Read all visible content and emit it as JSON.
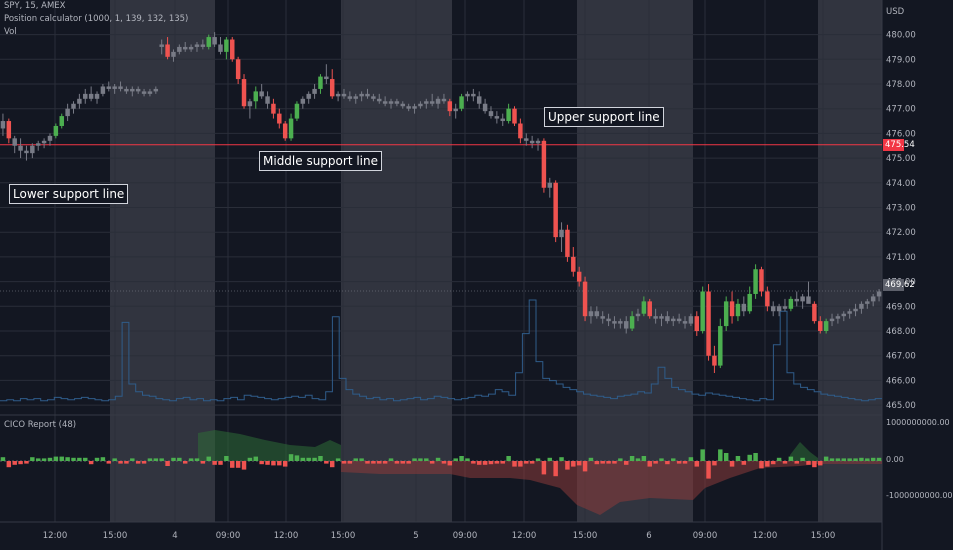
{
  "header": {
    "symbol_line": "SPY, 15, AMEX",
    "indicator_line": "Position calculator (1000, 1, 139, 132, 135)",
    "volume_label": "Vol",
    "currency": "USD"
  },
  "annotations": {
    "lower": "Lower support line",
    "middle": "Middle support line",
    "upper": "Upper support line"
  },
  "lower_pane": {
    "title": "CICO Report (48)",
    "ticks": [
      "1000000000.00",
      "0.00",
      "-1000000000.00"
    ]
  },
  "price_tags": {
    "support": "475.54",
    "last": "469.62"
  },
  "chart_data": {
    "type": "candlestick",
    "y_ticks": [
      "480.00",
      "479.00",
      "478.00",
      "477.00",
      "476.00",
      "475.00",
      "474.00",
      "473.00",
      "472.00",
      "471.00",
      "470.00",
      "469.00",
      "468.00",
      "467.00",
      "466.00",
      "465.00"
    ],
    "x_ticks": [
      "12:00",
      "15:00",
      "4",
      "09:00",
      "12:00",
      "15:00",
      "5",
      "09:00",
      "12:00",
      "15:00",
      "6",
      "09:00",
      "12:00",
      "15:00"
    ],
    "ylim": [
      464.6,
      481.4
    ],
    "support_level": 475.54,
    "last_price": 469.62,
    "colors": {
      "up": "#4caf50",
      "down": "#ef5350",
      "neutral": "#787b86",
      "support": "#f23645",
      "last": "#787b86",
      "session_shade": "#3c3f4a",
      "background": "#131722"
    },
    "candles": [
      [
        476.2,
        476.8,
        475.9,
        476.5
      ],
      [
        476.5,
        476.6,
        475.6,
        475.8
      ],
      [
        475.8,
        475.9,
        475.2,
        475.5
      ],
      [
        475.5,
        475.8,
        475.0,
        475.3
      ],
      [
        475.3,
        475.5,
        474.9,
        475.2
      ],
      [
        475.2,
        475.6,
        475.0,
        475.5
      ],
      [
        475.5,
        475.7,
        475.3,
        475.6
      ],
      [
        475.6,
        475.8,
        475.4,
        475.7
      ],
      [
        475.7,
        476.0,
        475.5,
        475.9
      ],
      [
        475.9,
        476.4,
        475.8,
        476.3
      ],
      [
        476.3,
        476.8,
        476.2,
        476.7
      ],
      [
        476.7,
        477.2,
        476.5,
        477.0
      ],
      [
        477.0,
        477.3,
        476.8,
        477.2
      ],
      [
        477.2,
        477.6,
        477.0,
        477.4
      ],
      [
        477.4,
        477.8,
        477.2,
        477.6
      ],
      [
        477.6,
        477.9,
        477.3,
        477.4
      ],
      [
        477.4,
        477.7,
        477.2,
        477.6
      ],
      [
        477.6,
        478.0,
        477.5,
        477.9
      ],
      [
        477.9,
        478.1,
        477.7,
        477.8
      ],
      [
        477.8,
        478.0,
        477.6,
        477.9
      ],
      [
        477.9,
        478.1,
        477.7,
        477.8
      ],
      [
        477.8,
        477.9,
        477.6,
        477.7
      ],
      [
        477.7,
        477.9,
        477.5,
        477.8
      ],
      [
        477.8,
        477.9,
        477.6,
        477.7
      ],
      [
        477.7,
        477.8,
        477.5,
        477.6
      ],
      [
        477.6,
        477.8,
        477.5,
        477.7
      ],
      [
        477.7,
        477.9,
        477.6,
        477.8
      ],
      [
        479.5,
        479.8,
        479.2,
        479.6
      ],
      [
        479.6,
        479.9,
        479.0,
        479.1
      ],
      [
        479.1,
        479.4,
        478.9,
        479.3
      ],
      [
        479.3,
        479.6,
        479.2,
        479.5
      ],
      [
        479.5,
        479.7,
        479.3,
        479.4
      ],
      [
        479.4,
        479.6,
        479.3,
        479.5
      ],
      [
        479.5,
        479.7,
        479.3,
        479.6
      ],
      [
        479.6,
        479.8,
        479.4,
        479.5
      ],
      [
        479.5,
        480.0,
        479.4,
        479.9
      ],
      [
        479.9,
        480.1,
        479.5,
        479.6
      ],
      [
        479.6,
        479.9,
        479.2,
        479.3
      ],
      [
        479.3,
        479.9,
        479.0,
        479.8
      ],
      [
        479.8,
        479.9,
        478.9,
        479.0
      ],
      [
        479.0,
        479.1,
        478.0,
        478.2
      ],
      [
        478.2,
        478.4,
        477.0,
        477.1
      ],
      [
        477.1,
        477.4,
        476.6,
        477.3
      ],
      [
        477.3,
        477.9,
        477.0,
        477.7
      ],
      [
        477.7,
        478.0,
        477.4,
        477.5
      ],
      [
        477.5,
        477.7,
        477.0,
        477.2
      ],
      [
        477.2,
        477.4,
        476.6,
        476.8
      ],
      [
        476.8,
        477.0,
        476.2,
        476.4
      ],
      [
        476.4,
        476.5,
        475.7,
        475.8
      ],
      [
        475.8,
        476.8,
        475.7,
        476.6
      ],
      [
        476.6,
        477.3,
        476.5,
        477.2
      ],
      [
        477.2,
        477.5,
        477.0,
        477.4
      ],
      [
        477.4,
        477.7,
        477.2,
        477.6
      ],
      [
        477.6,
        478.0,
        477.4,
        477.8
      ],
      [
        477.8,
        478.4,
        477.6,
        478.3
      ],
      [
        478.3,
        478.8,
        478.0,
        478.2
      ],
      [
        478.2,
        478.6,
        477.4,
        477.5
      ],
      [
        477.5,
        477.7,
        477.3,
        477.6
      ],
      [
        477.6,
        477.8,
        477.4,
        477.5
      ],
      [
        477.5,
        477.7,
        477.3,
        477.4
      ],
      [
        477.4,
        477.6,
        477.2,
        477.5
      ],
      [
        477.5,
        477.7,
        477.3,
        477.6
      ],
      [
        477.6,
        477.8,
        477.4,
        477.5
      ],
      [
        477.5,
        477.6,
        477.3,
        477.4
      ],
      [
        477.4,
        477.6,
        477.2,
        477.3
      ],
      [
        477.3,
        477.5,
        477.1,
        477.2
      ],
      [
        477.2,
        477.4,
        477.0,
        477.3
      ],
      [
        477.3,
        477.4,
        477.1,
        477.2
      ],
      [
        477.2,
        477.3,
        477.0,
        477.1
      ],
      [
        477.1,
        477.2,
        476.9,
        477.0
      ],
      [
        477.0,
        477.2,
        476.8,
        477.1
      ],
      [
        477.1,
        477.3,
        477.0,
        477.2
      ],
      [
        477.2,
        477.4,
        477.0,
        477.3
      ],
      [
        477.3,
        477.6,
        477.1,
        477.2
      ],
      [
        477.2,
        477.5,
        477.0,
        477.4
      ],
      [
        477.4,
        477.6,
        477.2,
        477.3
      ],
      [
        477.3,
        477.4,
        476.7,
        476.9
      ],
      [
        476.9,
        477.2,
        476.6,
        477.0
      ],
      [
        477.0,
        477.6,
        476.9,
        477.5
      ],
      [
        477.5,
        477.7,
        477.3,
        477.6
      ],
      [
        477.6,
        477.8,
        477.3,
        477.5
      ],
      [
        477.5,
        477.7,
        477.0,
        477.2
      ],
      [
        477.2,
        477.4,
        476.8,
        476.9
      ],
      [
        476.9,
        477.1,
        476.6,
        476.7
      ],
      [
        476.7,
        476.9,
        476.4,
        476.6
      ],
      [
        476.6,
        476.8,
        476.3,
        476.5
      ],
      [
        476.5,
        477.2,
        476.4,
        477.0
      ],
      [
        477.0,
        477.1,
        476.3,
        476.4
      ],
      [
        476.4,
        476.6,
        475.6,
        475.8
      ],
      [
        475.8,
        476.0,
        475.5,
        475.7
      ],
      [
        475.7,
        475.9,
        475.4,
        475.6
      ],
      [
        475.6,
        475.8,
        475.3,
        475.7
      ],
      [
        475.7,
        475.8,
        473.6,
        473.8
      ],
      [
        473.8,
        474.2,
        473.4,
        474.0
      ],
      [
        474.0,
        474.1,
        471.6,
        471.8
      ],
      [
        471.8,
        472.4,
        471.2,
        472.1
      ],
      [
        472.1,
        472.3,
        470.8,
        471.0
      ],
      [
        471.0,
        471.4,
        470.2,
        470.4
      ],
      [
        470.4,
        470.6,
        469.8,
        470.0
      ],
      [
        470.0,
        470.2,
        468.4,
        468.6
      ],
      [
        468.6,
        469.0,
        468.3,
        468.8
      ],
      [
        468.8,
        469.0,
        468.5,
        468.6
      ],
      [
        468.6,
        468.8,
        468.3,
        468.5
      ],
      [
        468.5,
        468.7,
        468.2,
        468.4
      ],
      [
        468.4,
        468.6,
        468.1,
        468.3
      ],
      [
        468.3,
        468.5,
        468.1,
        468.4
      ],
      [
        468.4,
        468.6,
        467.9,
        468.1
      ],
      [
        468.1,
        468.8,
        468.0,
        468.6
      ],
      [
        468.6,
        468.9,
        468.4,
        468.7
      ],
      [
        468.7,
        469.4,
        468.6,
        469.2
      ],
      [
        469.2,
        469.3,
        468.5,
        468.6
      ],
      [
        468.6,
        468.9,
        468.3,
        468.5
      ],
      [
        468.5,
        468.7,
        468.2,
        468.6
      ],
      [
        468.6,
        468.8,
        468.3,
        468.4
      ],
      [
        468.4,
        468.6,
        468.2,
        468.5
      ],
      [
        468.5,
        468.7,
        468.3,
        468.4
      ],
      [
        468.4,
        468.6,
        468.1,
        468.3
      ],
      [
        468.3,
        468.7,
        468.2,
        468.6
      ],
      [
        468.6,
        468.8,
        467.8,
        468.0
      ],
      [
        468.0,
        469.8,
        467.9,
        469.6
      ],
      [
        469.6,
        469.9,
        466.8,
        467.0
      ],
      [
        467.0,
        467.4,
        466.3,
        466.6
      ],
      [
        466.6,
        468.5,
        466.5,
        468.2
      ],
      [
        468.2,
        469.4,
        468.0,
        469.2
      ],
      [
        469.2,
        469.6,
        468.3,
        468.6
      ],
      [
        468.6,
        469.3,
        468.4,
        469.1
      ],
      [
        469.1,
        469.4,
        468.6,
        468.8
      ],
      [
        468.8,
        469.8,
        468.7,
        469.5
      ],
      [
        469.5,
        470.7,
        469.3,
        470.5
      ],
      [
        470.5,
        470.6,
        469.4,
        469.6
      ],
      [
        469.6,
        469.8,
        468.8,
        469.0
      ],
      [
        469.0,
        469.2,
        468.6,
        468.8
      ],
      [
        468.8,
        469.1,
        468.6,
        469.0
      ],
      [
        469.0,
        469.3,
        468.8,
        468.9
      ],
      [
        468.9,
        469.4,
        468.8,
        469.3
      ],
      [
        469.3,
        469.6,
        469.0,
        469.2
      ],
      [
        469.2,
        469.5,
        468.9,
        469.4
      ],
      [
        469.4,
        470.0,
        469.2,
        469.1
      ],
      [
        469.1,
        469.2,
        468.3,
        468.4
      ],
      [
        468.4,
        468.6,
        467.9,
        468.0
      ],
      [
        468.0,
        468.5,
        467.9,
        468.4
      ],
      [
        468.4,
        468.7,
        468.2,
        468.5
      ],
      [
        468.5,
        468.7,
        468.3,
        468.6
      ],
      [
        468.6,
        468.8,
        468.4,
        468.7
      ],
      [
        468.7,
        468.9,
        468.5,
        468.8
      ],
      [
        468.8,
        469.1,
        468.6,
        468.9
      ],
      [
        468.9,
        469.2,
        468.7,
        469.1
      ],
      [
        469.1,
        469.3,
        468.9,
        469.2
      ],
      [
        469.2,
        469.5,
        469.0,
        469.4
      ],
      [
        469.4,
        469.7,
        469.2,
        469.6
      ]
    ],
    "volume_steps": [
      0.1,
      0.11,
      0.1,
      0.12,
      0.11,
      0.12,
      0.1,
      0.11,
      0.13,
      0.12,
      0.11,
      0.12,
      0.13,
      0.12,
      0.11,
      0.1,
      0.11,
      0.14,
      0.8,
      0.25,
      0.18,
      0.15,
      0.14,
      0.12,
      0.11,
      0.1,
      0.12,
      0.13,
      0.11,
      0.12,
      0.1,
      0.11,
      0.1,
      0.12,
      0.13,
      0.11,
      0.15,
      0.14,
      0.13,
      0.12,
      0.11,
      0.12,
      0.13,
      0.14,
      0.13,
      0.15,
      0.12,
      0.11,
      0.18,
      0.85,
      0.3,
      0.2,
      0.16,
      0.14,
      0.12,
      0.13,
      0.11,
      0.12,
      0.1,
      0.11,
      0.12,
      0.13,
      0.11,
      0.12,
      0.14,
      0.13,
      0.12,
      0.11,
      0.12,
      0.13,
      0.15,
      0.14,
      0.16,
      0.2,
      0.18,
      0.15,
      0.35,
      0.7,
      1.0,
      0.45,
      0.3,
      0.28,
      0.25,
      0.22,
      0.2,
      0.18,
      0.16,
      0.15,
      0.14,
      0.13,
      0.12,
      0.14,
      0.15,
      0.16,
      0.18,
      0.17,
      0.25,
      0.4,
      0.3,
      0.22,
      0.2,
      0.18,
      0.16,
      0.15,
      0.17,
      0.16,
      0.15,
      0.14,
      0.13,
      0.12,
      0.11,
      0.1,
      0.12,
      0.11,
      0.6,
      0.9,
      0.35,
      0.25,
      0.22,
      0.2,
      0.18,
      0.16,
      0.15,
      0.14,
      0.13,
      0.12,
      0.11,
      0.1,
      0.11,
      0.12
    ]
  }
}
